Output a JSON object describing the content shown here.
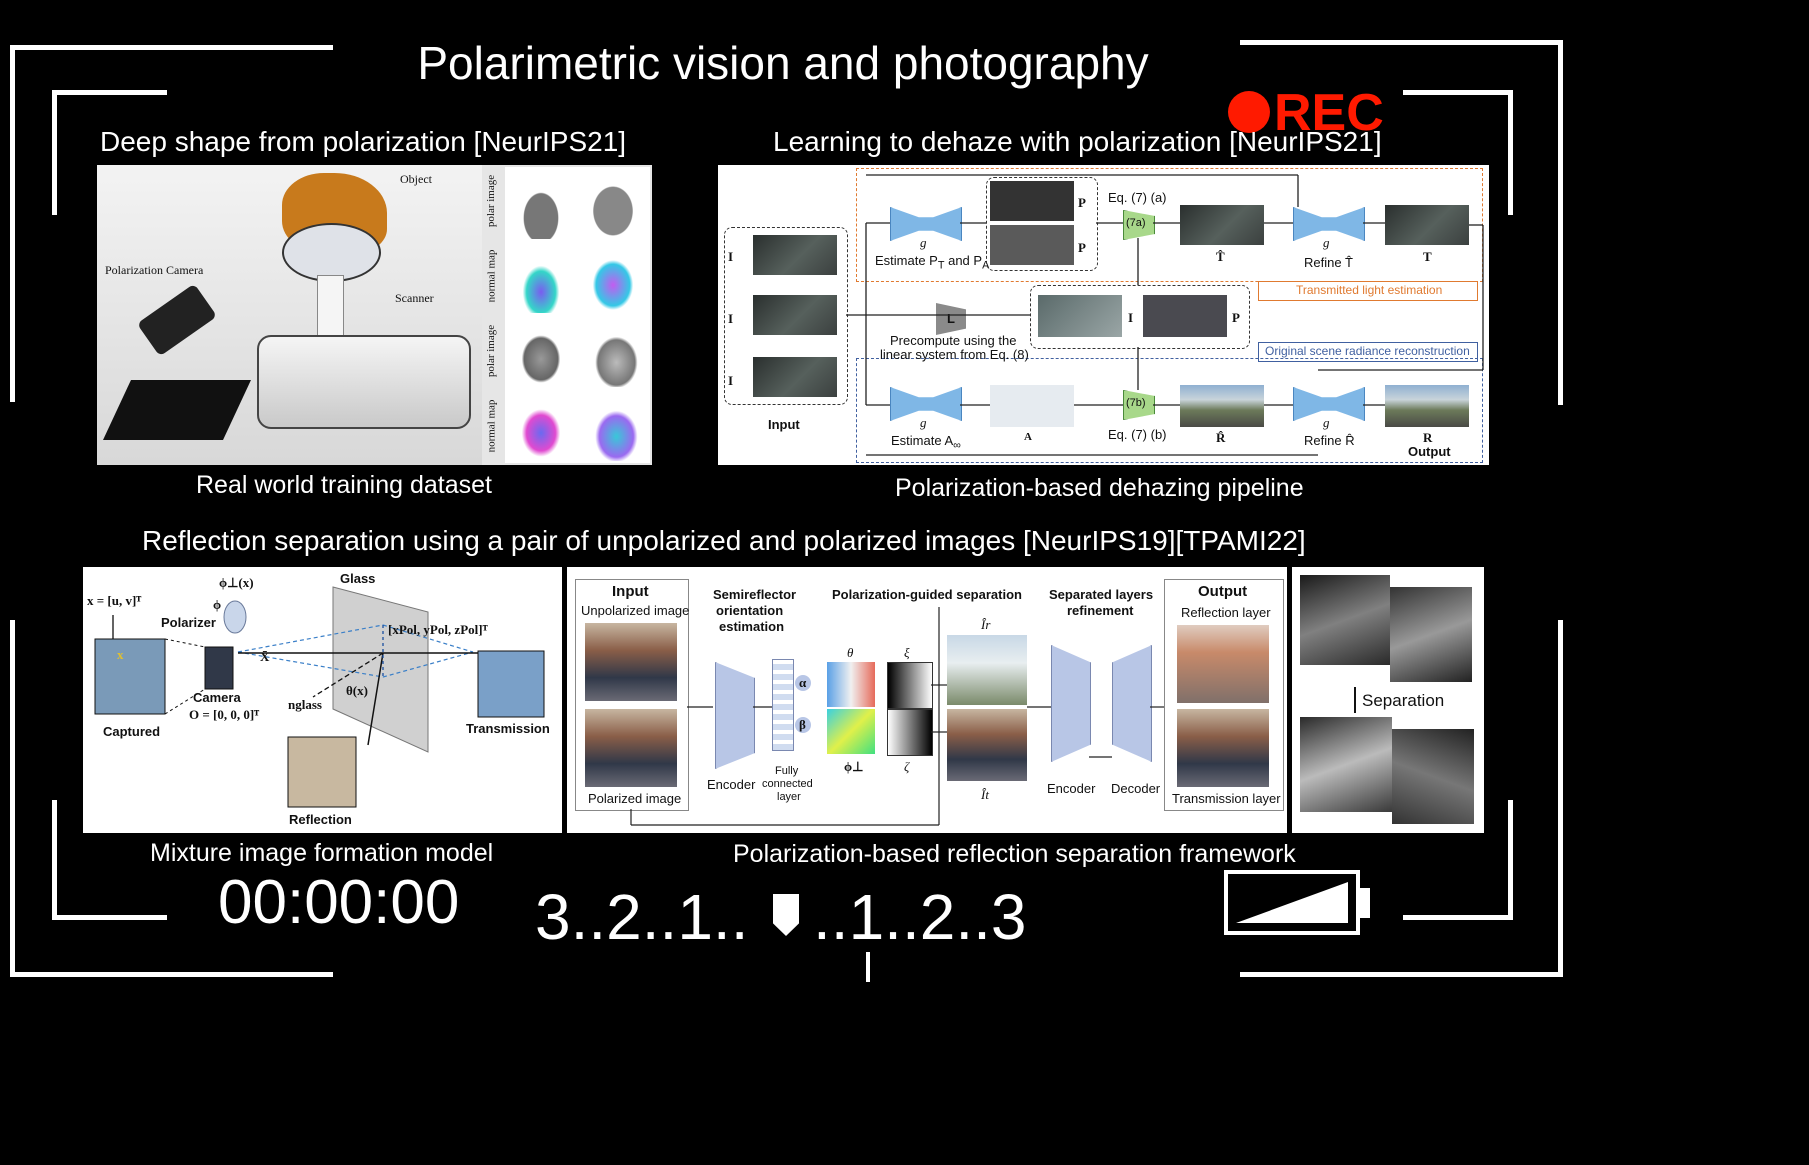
{
  "title": "Polarimetric vision and photography",
  "rec_label": "REC",
  "timecode": "00:00:00",
  "countdown": "3..2..1..",
  "countdown_after": "..1..2..3",
  "colors": {
    "background": "#000000",
    "rec_dot": "#ff1a00",
    "frame": "#ffffff"
  },
  "battery_level": 0.55,
  "sections": {
    "top_left": {
      "heading": "Deep shape from polarization [NeurIPS21]",
      "caption": "Real world training dataset",
      "labels": {
        "object": "Object",
        "camera": "Polarization Camera",
        "scanner": "Scanner",
        "polar_image": "polar image",
        "normal_map": "normal map"
      }
    },
    "top_right": {
      "heading": "Learning to dehaze with polarization [NeurIPS21]",
      "caption": "Polarization-based dehazing pipeline",
      "labels": {
        "input": "Input",
        "i1": "I",
        "i2": "I",
        "i3": "I",
        "estimate_pt_pa": "Estimate P",
        "pt_sub": "T",
        "and": " and P",
        "pa_sub": "A",
        "pt": "P",
        "pa": "P",
        "eq7a": "Eq. (7) (a)",
        "box7a": "(7a)",
        "t_hat": "T̂",
        "refine_t": "Refine T̂",
        "t": "T",
        "transmitted": "Transmitted light estimation",
        "l": "L",
        "precompute": "Precompute using the",
        "linear_system": "linear system from Eq. (8)",
        "i": "I",
        "p": "P",
        "original": "Original scene radiance reconstruction",
        "estimate_a": "Estimate A",
        "a_inf_sub": "∞",
        "a_inf": "A",
        "box7b": "(7b)",
        "eq7b": "Eq. (7) (b)",
        "r_hat": "R̂",
        "refine_r": "Refine R̂",
        "r": "R",
        "output": "Output",
        "g1": "g",
        "g2": "g",
        "g3": "g",
        "g4": "g"
      }
    },
    "bottom": {
      "heading": "Reflection separation using a pair of unpolarized and polarized images [NeurIPS19][TPAMI22]",
      "caption_left": "Mixture image formation model",
      "caption_right": "Polarization-based reflection separation framework",
      "model": {
        "x_eq": "x = [u, v]ᵀ",
        "phi_perp": "ϕ⊥(x)",
        "phi": "ϕ",
        "polarizer": "Polarizer",
        "glass": "Glass",
        "xpol": "[xPol, yPol, zPol]ᵀ",
        "x_bar": "X̄",
        "camera": "Camera",
        "origin": "O = [0, 0, 0]ᵀ",
        "captured": "Captured",
        "n_glass": "nglass",
        "theta": "θ(x)",
        "transmission": "Transmission",
        "reflection": "Reflection",
        "x_mark": "x"
      },
      "framework": {
        "input": "Input",
        "unpolarized": "Unpolarized image",
        "polarized": "Polarized image",
        "semireflector": "Semireflector",
        "orientation": "orientation",
        "estimation": "estimation",
        "encoder": "Encoder",
        "fully": "Fully",
        "connected": "connected",
        "layer": "layer",
        "alpha": "α",
        "beta": "β",
        "guided": "Polarization-guided separation",
        "theta": "θ",
        "phi_perp": "ϕ⊥",
        "xi": "ξ",
        "zeta": "ζ",
        "ir": "Îr",
        "it": "Ît",
        "separated": "Separated layers",
        "refinement": "refinement",
        "encoder2": "Encoder",
        "decoder": "Decoder",
        "output": "Output",
        "reflection_layer": "Reflection layer",
        "transmission_layer": "Transmission layer"
      },
      "separation_label": "Separation"
    }
  }
}
